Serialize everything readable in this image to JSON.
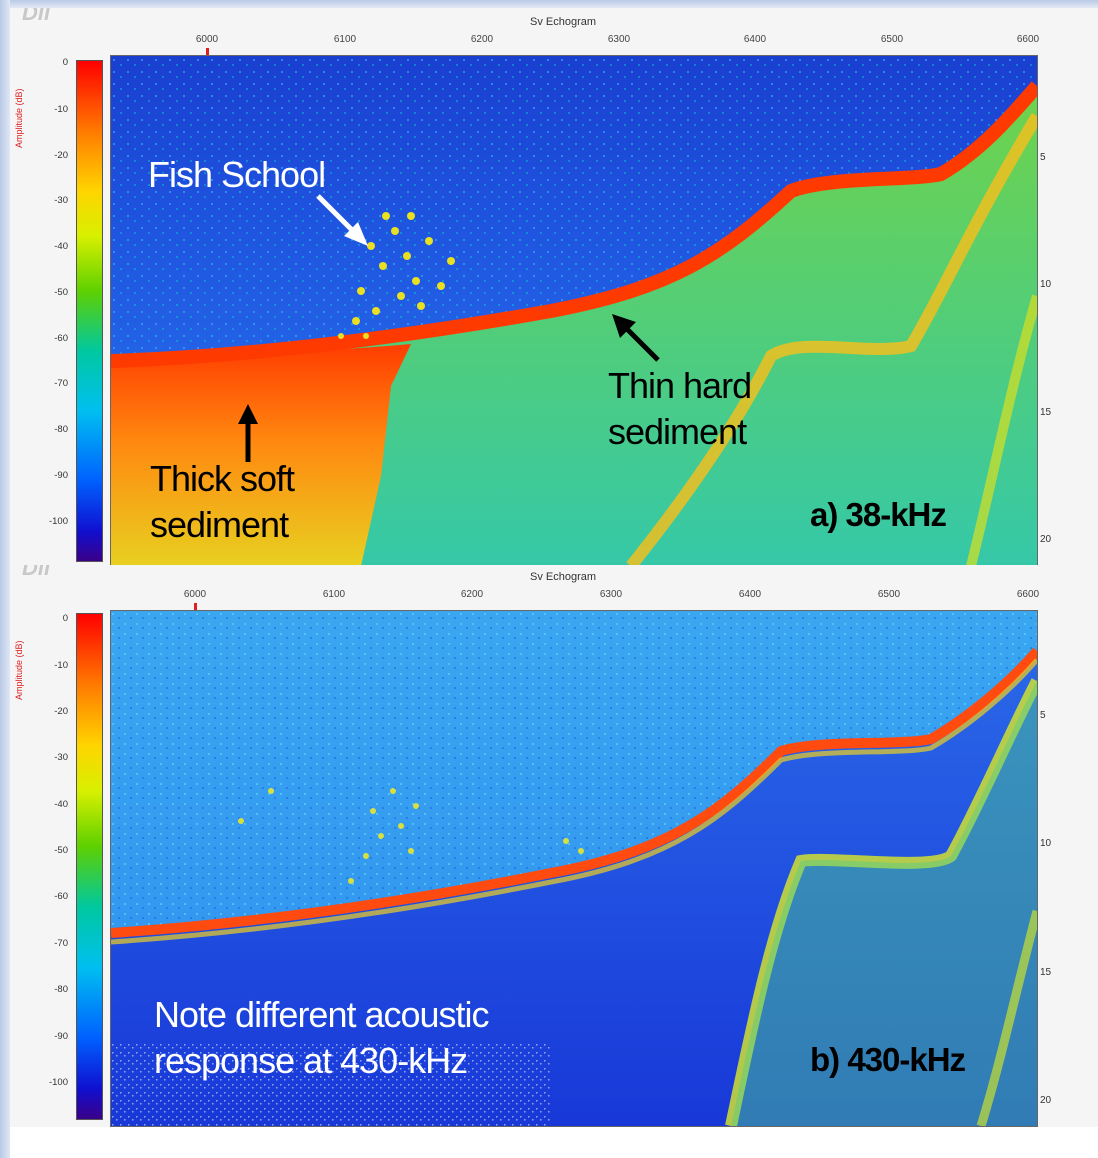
{
  "panels": [
    {
      "title": "Sv Echogram",
      "x_ticks": [
        "6000",
        "6100",
        "6200",
        "6300",
        "6400",
        "6500",
        "6600"
      ],
      "colorbar_ticks": [
        "0",
        "-10",
        "-20",
        "-30",
        "-40",
        "-50",
        "-60",
        "-70",
        "-80",
        "-90",
        "-100"
      ],
      "colorbar_axis_title": "Amplitude (dB)",
      "depth_ticks": [
        "5",
        "10",
        "15",
        "20"
      ],
      "annotations": {
        "fish_school": "Fish School",
        "thin_hard_line1": "Thin hard",
        "thin_hard_line2": "sediment",
        "thick_soft_line1": "Thick soft",
        "thick_soft_line2": "sediment",
        "freq_label": "a) 38-kHz"
      }
    },
    {
      "title": "Sv Echogram",
      "x_ticks": [
        "6000",
        "6100",
        "6200",
        "6300",
        "6400",
        "6500",
        "6600"
      ],
      "colorbar_ticks": [
        "0",
        "-10",
        "-20",
        "-30",
        "-40",
        "-50",
        "-60",
        "-70",
        "-80",
        "-90",
        "-100"
      ],
      "colorbar_axis_title": "Amplitude (dB)",
      "depth_ticks": [
        "5",
        "10",
        "15",
        "20"
      ],
      "annotations": {
        "note_line1": "Note different acoustic",
        "note_line2": "response at 430-kHz",
        "freq_label": "b) 430-kHz"
      }
    }
  ],
  "colors": {
    "water_38": "#1f5fe6",
    "water_430": "#2f8ff0",
    "bottom_echo": "#ff3a00",
    "sediment": "#7ad64a"
  }
}
